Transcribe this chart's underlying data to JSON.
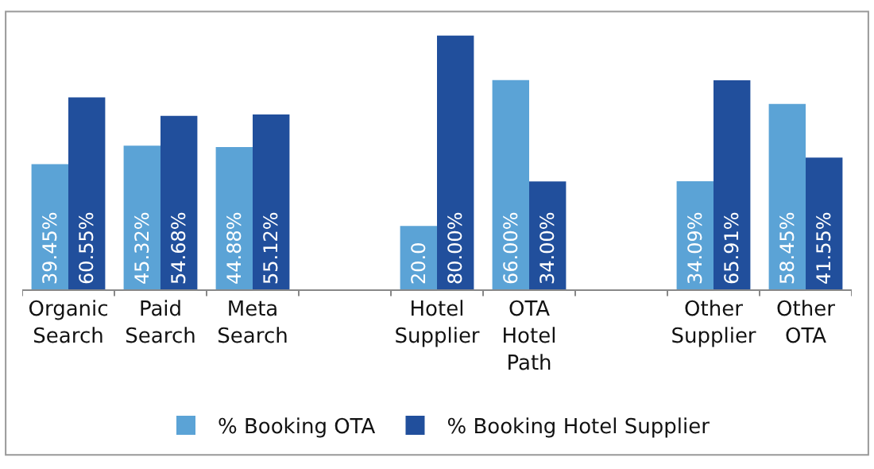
{
  "chart_data": {
    "type": "bar",
    "categories": [
      "Organic Search",
      "Paid Search",
      "Meta Search",
      null,
      "Hotel Supplier",
      "OTA Hotel Path",
      null,
      "Other Supplier",
      "Other OTA"
    ],
    "series": [
      {
        "name": "% Booking OTA",
        "color": "#5ba3d6",
        "values": [
          39.45,
          45.32,
          44.88,
          null,
          20.0,
          66.0,
          null,
          34.09,
          58.45
        ],
        "value_labels": [
          "39.45%",
          "45.32%",
          "44.88%",
          null,
          "20.0",
          "66.00%",
          null,
          "34.09%",
          "58.45%"
        ]
      },
      {
        "name": "% Booking Hotel Supplier",
        "color": "#214f9c",
        "values": [
          60.55,
          54.68,
          55.12,
          null,
          80.0,
          34.0,
          null,
          65.91,
          41.55
        ],
        "value_labels": [
          "60.55%",
          "54.68%",
          "55.12%",
          null,
          "80.00%",
          "34.00%",
          null,
          "65.91%",
          "41.55%"
        ]
      }
    ],
    "legend": "bottom",
    "grid": false
  }
}
